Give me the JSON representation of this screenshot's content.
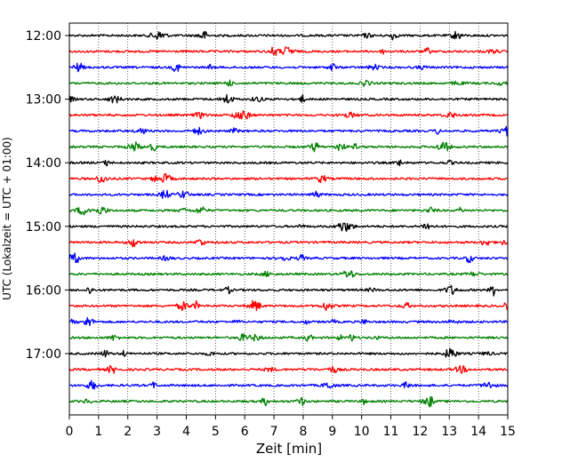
{
  "chart_data": {
    "type": "line",
    "title": "",
    "xlabel": "Zeit  [min]",
    "ylabel": "UTC (Lokalzeit = UTC + 01:00)",
    "xlim": [
      0,
      15
    ],
    "x_ticks": [
      "0",
      "1",
      "2",
      "3",
      "4",
      "5",
      "6",
      "7",
      "8",
      "9",
      "10",
      "11",
      "12",
      "13",
      "14",
      "15"
    ],
    "y_ticks": [
      {
        "label": "12:00",
        "trace_index": 0
      },
      {
        "label": "13:00",
        "trace_index": 4
      },
      {
        "label": "14:00",
        "trace_index": 8
      },
      {
        "label": "15:00",
        "trace_index": 12
      },
      {
        "label": "16:00",
        "trace_index": 16
      },
      {
        "label": "17:00",
        "trace_index": 20
      }
    ],
    "grid": "vertical dotted",
    "trace_interval_minutes": 15,
    "trace_start_times": [
      "12:00",
      "12:15",
      "12:30",
      "12:45",
      "13:00",
      "13:15",
      "13:30",
      "13:45",
      "14:00",
      "14:15",
      "14:30",
      "14:45",
      "15:00",
      "15:15",
      "15:30",
      "15:45",
      "16:00",
      "16:15",
      "16:30",
      "16:45",
      "17:00",
      "17:15",
      "17:30",
      "17:45"
    ],
    "trace_colors": [
      "#000000",
      "#ff0000",
      "#0000ff",
      "#008000"
    ]
  }
}
